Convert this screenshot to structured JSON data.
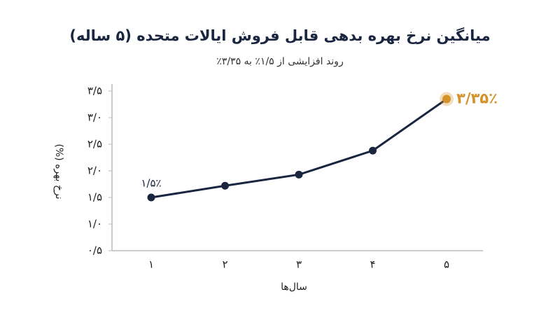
{
  "chart_data": {
    "type": "line",
    "title": "میانگین نرخ بهره بدهی قابل فروش ایالات متحده (۵ ساله)",
    "subtitle": "روند افزایشی از ۱/۵٪ به ۳/۳۵٪",
    "x_label": "سال‌ها",
    "y_label": "نرخ بهره (%)",
    "categories": [
      "۱",
      "۲",
      "۳",
      "۴",
      "۵"
    ],
    "series": [
      {
        "name": "نرخ بهره",
        "color": "#1a2540",
        "highlight_color": "#d4922a",
        "values": [
          1.5,
          1.72,
          1.93,
          2.38,
          3.35
        ],
        "value_labels": [
          "۱/۵٪",
          null,
          null,
          null,
          "۳/۳۵٪"
        ]
      }
    ],
    "ylim": [
      0.5,
      3.5
    ],
    "yticks": [
      {
        "value": 0.5,
        "label": "۰/۵"
      },
      {
        "value": 1.0,
        "label": "۱/۰"
      },
      {
        "value": 1.5,
        "label": "۱/۵"
      },
      {
        "value": 2.0,
        "label": "۲/۰"
      },
      {
        "value": 2.5,
        "label": "۲/۵"
      },
      {
        "value": 3.0,
        "label": "۳/۰"
      },
      {
        "value": 3.5,
        "label": "۳/۵"
      }
    ],
    "grid": false
  }
}
